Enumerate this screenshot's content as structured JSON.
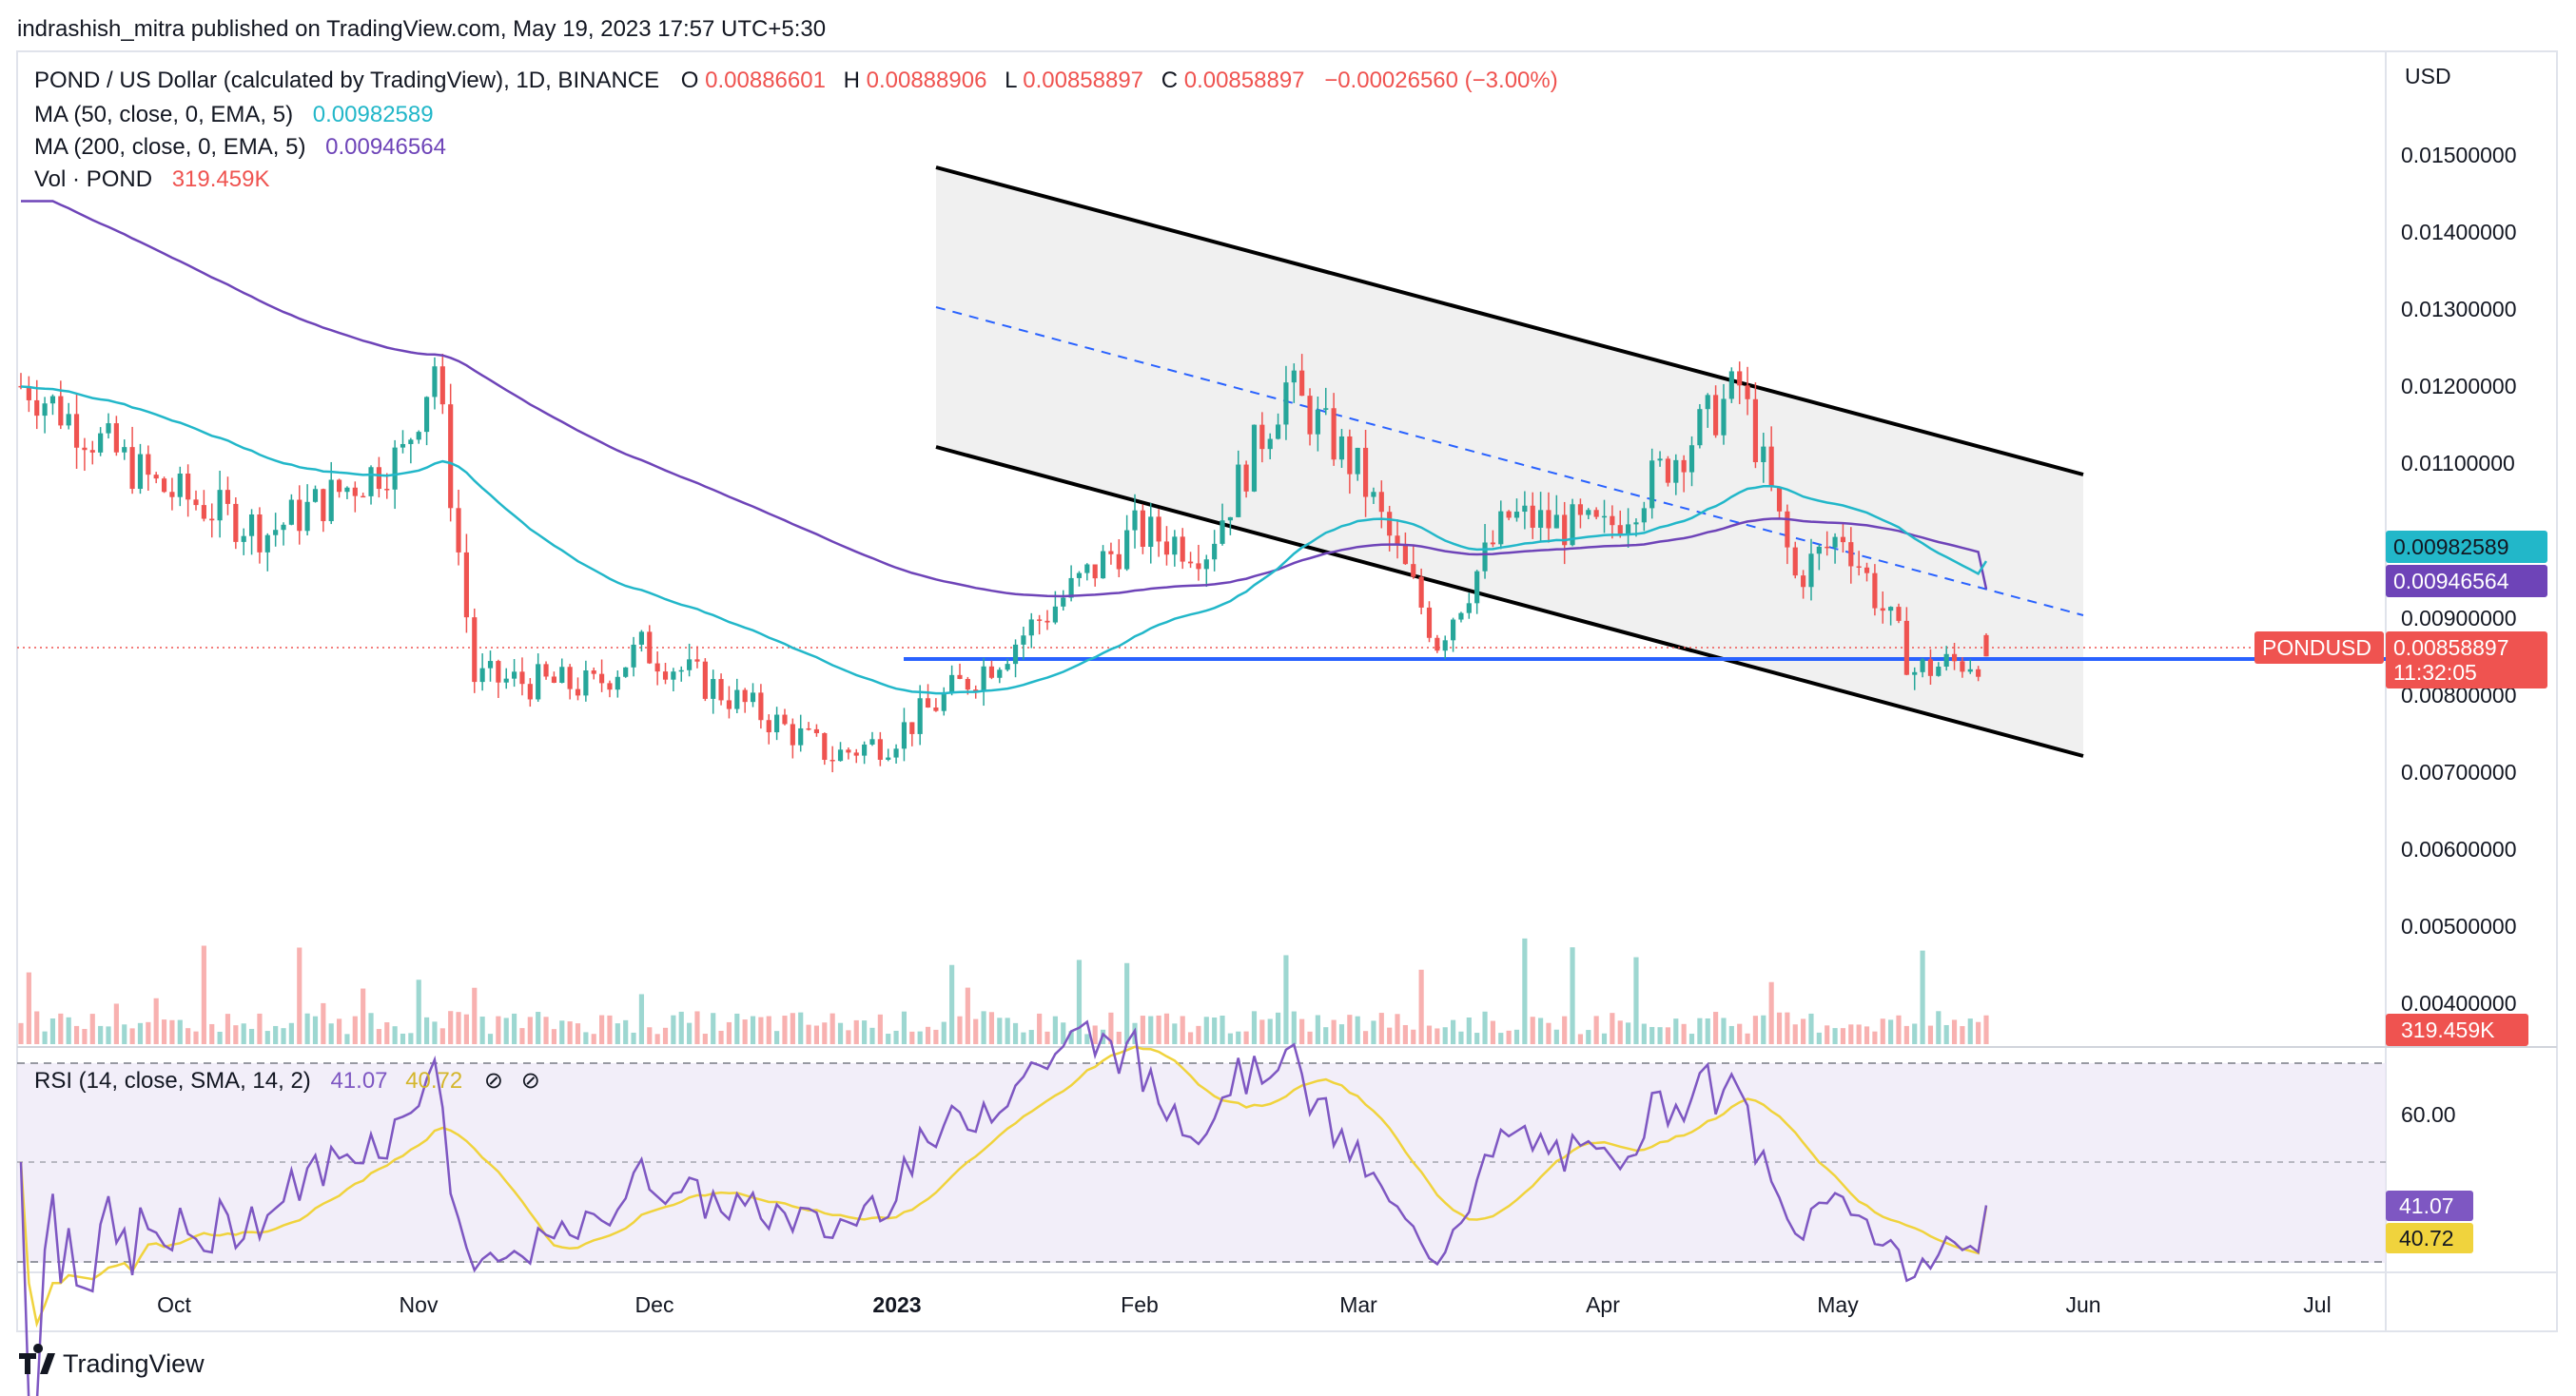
{
  "header": {
    "publisher": "indrashish_mitra published on TradingView.com, May 19, 2023 17:57 UTC+5:30"
  },
  "legend": {
    "symbol": "POND / US Dollar (calculated by TradingView), 1D, BINANCE",
    "ohlc": [
      {
        "label": "O",
        "value": "0.00886601"
      },
      {
        "label": "H",
        "value": "0.00888906"
      },
      {
        "label": "L",
        "value": "0.00858897"
      },
      {
        "label": "C",
        "value": "0.00858897"
      }
    ],
    "change": "−0.00026560 (−3.00%)",
    "ma50_label": "MA (50, close, 0, EMA, 5)",
    "ma50_value": "0.00982589",
    "ma200_label": "MA (200, close, 0, EMA, 5)",
    "ma200_value": "0.00946564",
    "vol_label": "Vol · POND",
    "vol_value": "319.459K",
    "rsi_label": "RSI (14, close, SMA, 14, 2)",
    "rsi_value": "41.07",
    "rsi_sma_value": "40.72"
  },
  "axis": {
    "currency": "USD",
    "price_ticks": [
      "0.01500000",
      "0.01400000",
      "0.01300000",
      "0.01200000",
      "0.01100000",
      "0.00900000",
      "0.00800000",
      "0.00700000",
      "0.00600000",
      "0.00500000",
      "0.00400000"
    ],
    "rsi_ticks": [
      "60.00"
    ],
    "time_ticks": [
      "Oct",
      "Nov",
      "Dec",
      "2023",
      "Feb",
      "Mar",
      "Apr",
      "May",
      "Jun",
      "Jul"
    ]
  },
  "price_tags": {
    "ma50": "0.00982589",
    "ma200": "0.00946564",
    "symbol": "PONDUSD",
    "last_price": "0.00858897",
    "countdown": "11:32:05",
    "volume": "319.459K",
    "rsi": "41.07",
    "rsi_sma": "40.72"
  },
  "footer": {
    "brand": "TradingView"
  },
  "colors": {
    "up": "#26a69a",
    "down": "#ef5350",
    "ma50": "#22b7c9",
    "ma200": "#6e44b8",
    "rsi": "#7e57c2",
    "rsi_sma": "#f0d33d",
    "support": "#2962ff",
    "channel": "#000000"
  },
  "chart_data": {
    "type": "candlestick",
    "symbol": "PONDUSD",
    "interval": "1D",
    "price_range": [
      0.0037,
      0.0159
    ],
    "last": {
      "open": 0.00886601,
      "high": 0.00888906,
      "low": 0.00858897,
      "close": 0.00858897
    },
    "closes_approx": [
      {
        "x": "2022-09-15",
        "y": 0.0121
      },
      {
        "x": "2022-10-01",
        "y": 0.0108
      },
      {
        "x": "2022-10-15",
        "y": 0.0102
      },
      {
        "x": "2022-11-01",
        "y": 0.0112
      },
      {
        "x": "2022-11-05",
        "y": 0.0124
      },
      {
        "x": "2022-11-10",
        "y": 0.0083
      },
      {
        "x": "2022-11-25",
        "y": 0.0082
      },
      {
        "x": "2022-12-01",
        "y": 0.0087
      },
      {
        "x": "2022-12-15",
        "y": 0.0079
      },
      {
        "x": "2022-12-25",
        "y": 0.0073
      },
      {
        "x": "2023-01-01",
        "y": 0.0075
      },
      {
        "x": "2023-01-15",
        "y": 0.0086
      },
      {
        "x": "2023-02-01",
        "y": 0.0102
      },
      {
        "x": "2023-02-10",
        "y": 0.01
      },
      {
        "x": "2023-02-20",
        "y": 0.0121
      },
      {
        "x": "2023-03-01",
        "y": 0.011
      },
      {
        "x": "2023-03-11",
        "y": 0.0088
      },
      {
        "x": "2023-03-20",
        "y": 0.0104
      },
      {
        "x": "2023-04-01",
        "y": 0.0102
      },
      {
        "x": "2023-04-18",
        "y": 0.0121
      },
      {
        "x": "2023-04-25",
        "y": 0.0096
      },
      {
        "x": "2023-05-01",
        "y": 0.0102
      },
      {
        "x": "2023-05-10",
        "y": 0.0084
      },
      {
        "x": "2023-05-19",
        "y": 0.00858897
      }
    ],
    "ma50_last": 0.00982589,
    "ma200_last": 0.00946564,
    "volume_last": "319.459K",
    "rsi_last": 41.07,
    "rsi_sma_last": 40.72,
    "support_level": 0.00845,
    "channel": {
      "upper": [
        {
          "x": "2023-01-01",
          "y": 0.0148
        },
        {
          "x": "2023-06-01",
          "y": 0.0108
        }
      ],
      "lower": [
        {
          "x": "2023-01-01",
          "y": 0.0112
        },
        {
          "x": "2023-06-01",
          "y": 0.0072
        }
      ],
      "mid": [
        {
          "x": "2023-01-01",
          "y": 0.013
        },
        {
          "x": "2023-06-01",
          "y": 0.009
        }
      ]
    }
  }
}
